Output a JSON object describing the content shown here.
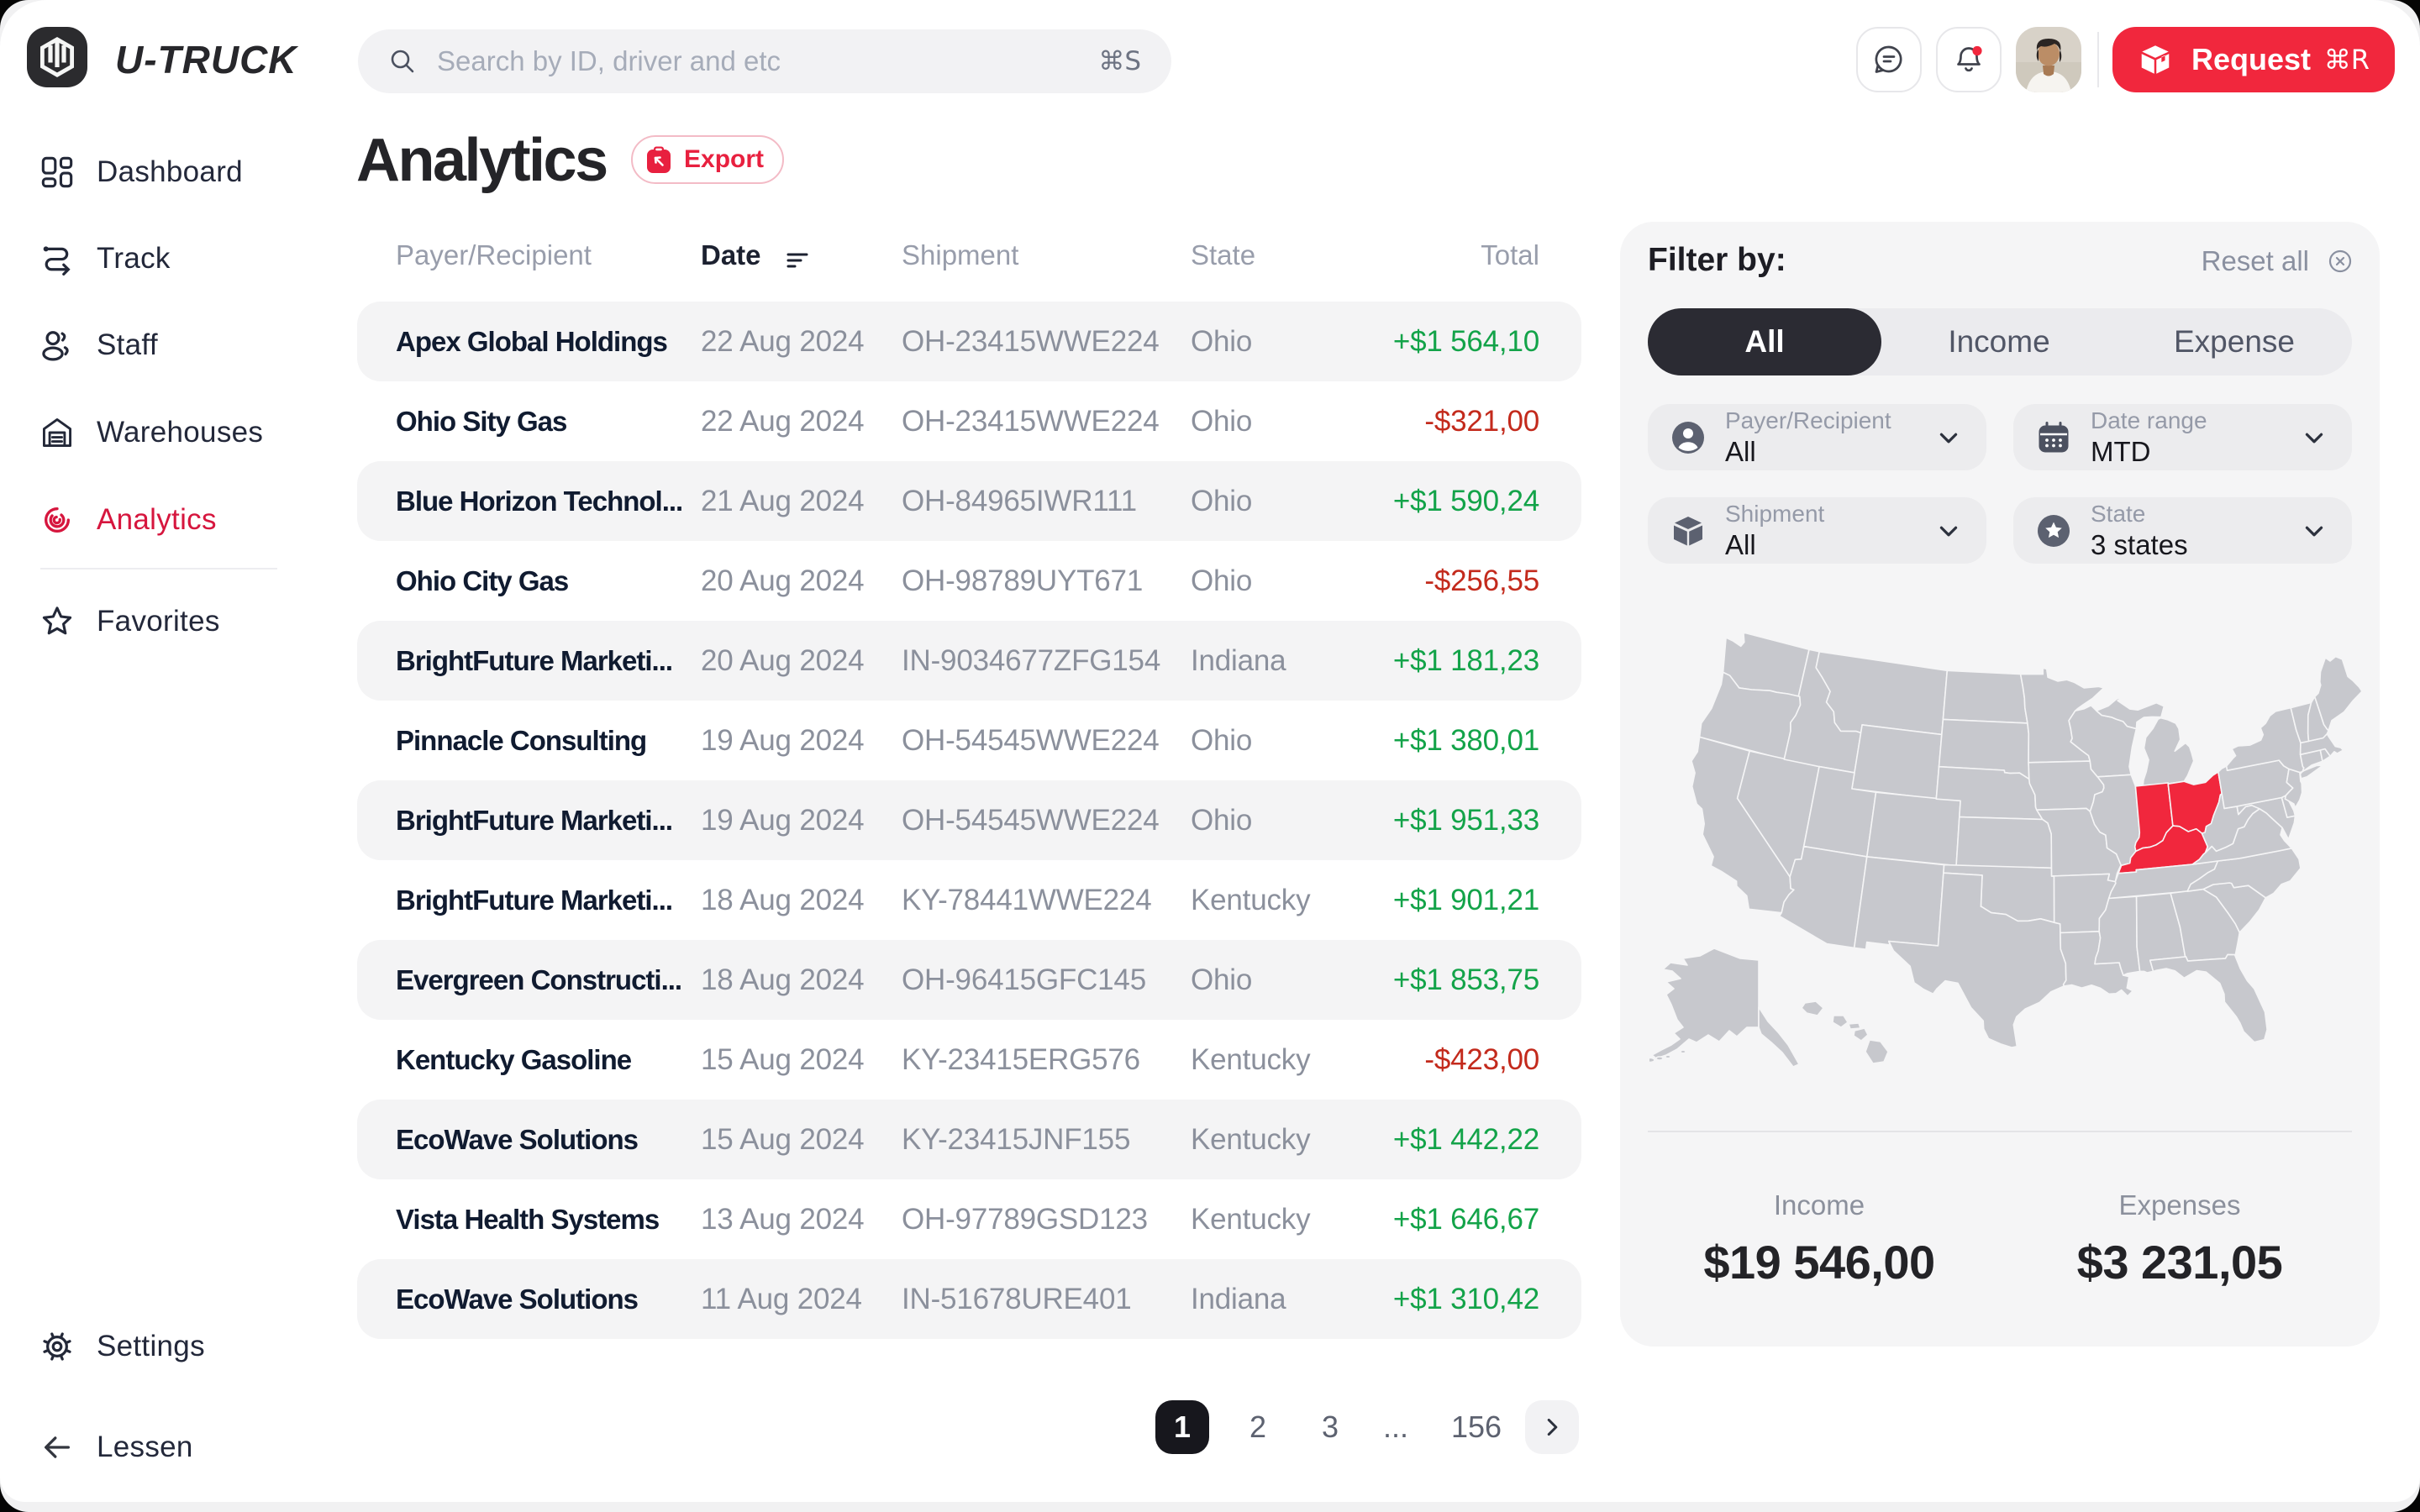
{
  "topbar": {
    "brand": "U-TRUCK",
    "search": {
      "placeholder": "Search by ID, driver and etc",
      "shortcut": "⌘S"
    },
    "request": {
      "label": "Request",
      "shortcut": "⌘R"
    }
  },
  "sidebar": {
    "items": [
      {
        "label": "Dashboard",
        "icon": "dashboard-icon",
        "active": false
      },
      {
        "label": "Track",
        "icon": "track-icon",
        "active": false
      },
      {
        "label": "Staff",
        "icon": "staff-icon",
        "active": false
      },
      {
        "label": "Warehouses",
        "icon": "warehouse-icon",
        "active": false
      },
      {
        "label": "Analytics",
        "icon": "analytics-icon",
        "active": true
      },
      {
        "label": "Favorites",
        "icon": "star-icon",
        "active": false,
        "divider_before": true
      }
    ],
    "settings": {
      "label": "Settings",
      "icon": "gear-icon"
    },
    "collapse": {
      "label": "Lessen",
      "icon": "arrow-left-icon"
    }
  },
  "page": {
    "title": "Analytics",
    "export_label": "Export"
  },
  "table": {
    "headers": {
      "payer": "Payer/Recipient",
      "date": "Date",
      "shipment": "Shipment",
      "state": "State",
      "total": "Total"
    },
    "sorted_by": "date",
    "rows": [
      {
        "payer": "Apex Global Holdings",
        "date": "22 Aug 2024",
        "shipment": "OH-23415WWE224",
        "state": "Ohio",
        "total": "+$1 564,10",
        "direction": "income"
      },
      {
        "payer": "Ohio Sity Gas",
        "date": "22 Aug 2024",
        "shipment": "OH-23415WWE224",
        "state": "Ohio",
        "total": "-$321,00",
        "direction": "expense"
      },
      {
        "payer": "Blue Horizon Technol...",
        "date": "21 Aug 2024",
        "shipment": "OH-84965IWR111",
        "state": "Ohio",
        "total": "+$1 590,24",
        "direction": "income"
      },
      {
        "payer": "Ohio City Gas",
        "date": "20 Aug 2024",
        "shipment": "OH-98789UYT671",
        "state": "Ohio",
        "total": "-$256,55",
        "direction": "expense"
      },
      {
        "payer": "BrightFuture Marketi...",
        "date": "20 Aug 2024",
        "shipment": "IN-9034677ZFG154",
        "state": "Indiana",
        "total": "+$1 181,23",
        "direction": "income"
      },
      {
        "payer": "Pinnacle Consulting",
        "date": "19 Aug 2024",
        "shipment": "OH-54545WWE224",
        "state": "Ohio",
        "total": "+$1 380,01",
        "direction": "income"
      },
      {
        "payer": "BrightFuture Marketi...",
        "date": "19 Aug 2024",
        "shipment": "OH-54545WWE224",
        "state": "Ohio",
        "total": "+$1 951,33",
        "direction": "income"
      },
      {
        "payer": "BrightFuture Marketi...",
        "date": "18 Aug 2024",
        "shipment": "KY-78441WWE224",
        "state": "Kentucky",
        "total": "+$1 901,21",
        "direction": "income"
      },
      {
        "payer": "Evergreen Constructi...",
        "date": "18 Aug 2024",
        "shipment": "OH-96415GFC145",
        "state": "Ohio",
        "total": "+$1 853,75",
        "direction": "income"
      },
      {
        "payer": "Kentucky Gasoline",
        "date": "15 Aug 2024",
        "shipment": "KY-23415ERG576",
        "state": "Kentucky",
        "total": "-$423,00",
        "direction": "expense"
      },
      {
        "payer": "EcoWave Solutions",
        "date": "15 Aug 2024",
        "shipment": "KY-23415JNF155",
        "state": "Kentucky",
        "total": "+$1 442,22",
        "direction": "income"
      },
      {
        "payer": "Vista Health Systems",
        "date": "13 Aug 2024",
        "shipment": "OH-97789GSD123",
        "state": "Kentucky",
        "total": "+$1 646,67",
        "direction": "income"
      },
      {
        "payer": "EcoWave Solutions",
        "date": "11 Aug 2024",
        "shipment": "IN-51678URE401",
        "state": "Indiana",
        "total": "+$1 310,42",
        "direction": "income"
      }
    ]
  },
  "pagination": {
    "pages": [
      "1",
      "2",
      "3",
      "...",
      "156"
    ],
    "active": "1",
    "next_icon": "chevron-right-icon"
  },
  "filter_panel": {
    "title": "Filter by:",
    "reset_label": "Reset all",
    "tabs": [
      {
        "label": "All",
        "active": true
      },
      {
        "label": "Income",
        "active": false
      },
      {
        "label": "Expense",
        "active": false
      }
    ],
    "cards": [
      {
        "label": "Payer/Recipient",
        "value": "All",
        "icon": "person-circle-icon"
      },
      {
        "label": "Date range",
        "value": "MTD",
        "icon": "calendar-icon"
      },
      {
        "label": "Shipment",
        "value": "All",
        "icon": "box-icon"
      },
      {
        "label": "State",
        "value": "3 states",
        "icon": "star-circle-icon"
      }
    ]
  },
  "map": {
    "highlighted_states": [
      "IN",
      "OH",
      "KY"
    ],
    "base_color": "#c7c8cd",
    "highlight_color": "#f1273d"
  },
  "summary": {
    "income_label": "Income",
    "income_value": "$19 546,00",
    "expenses_label": "Expenses",
    "expenses_value": "$3 231,05"
  },
  "colors": {
    "brand_red": "#f1273d",
    "accent_crimson": "#d6163e",
    "money_green": "#13a349",
    "money_red": "#c32a1c",
    "dark_pill": "#2b2b33",
    "pagination_active": "#17171d"
  }
}
